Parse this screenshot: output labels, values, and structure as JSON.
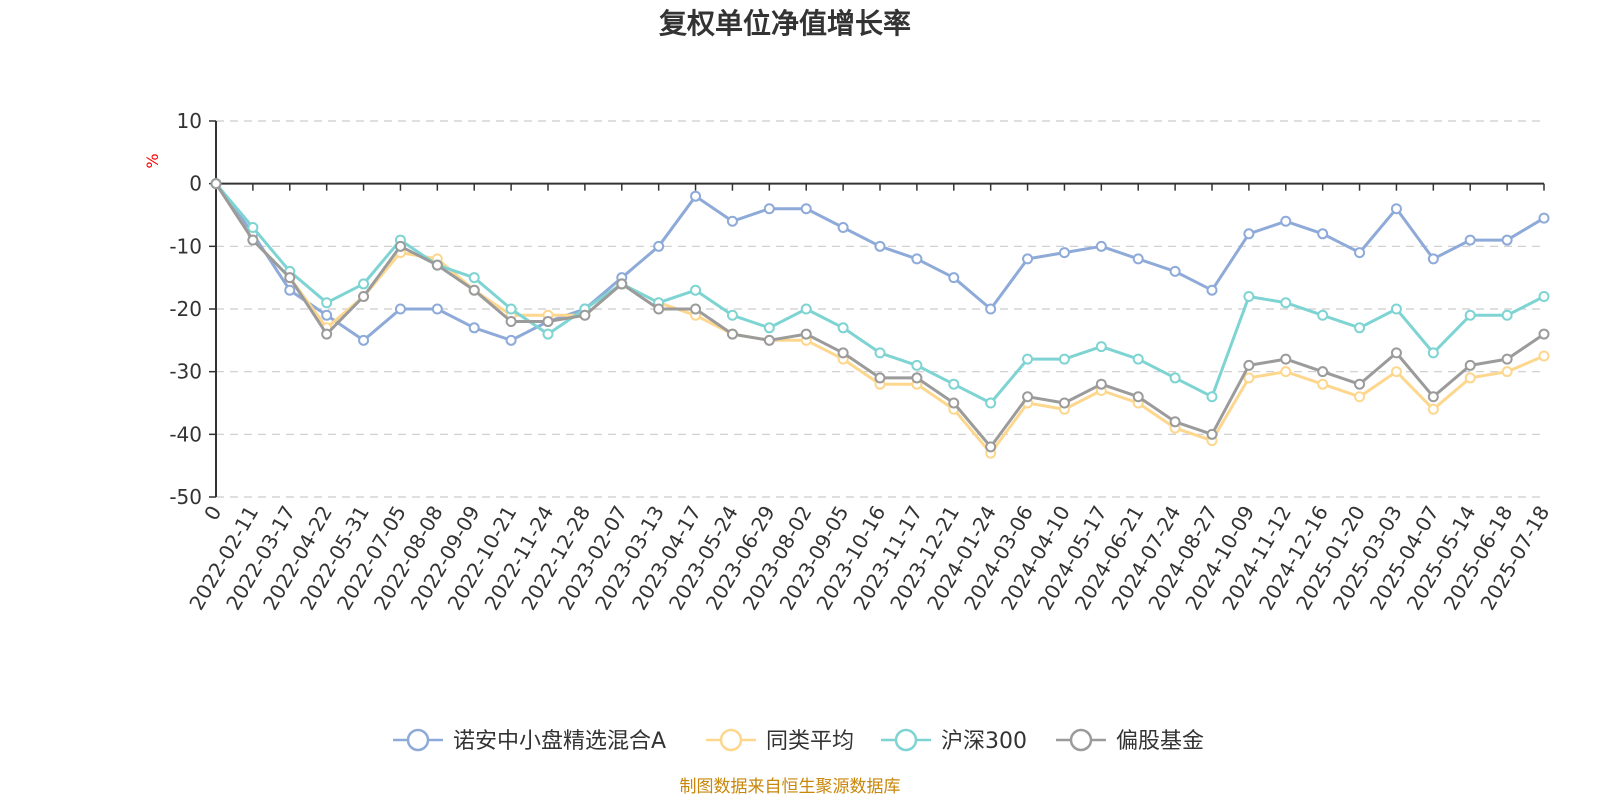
{
  "chart_data": {
    "type": "line",
    "title": "复权单位净值增长率",
    "ylabel": "%",
    "ylim": [
      -50,
      10
    ],
    "yticks": [
      10,
      0,
      -10,
      -20,
      -30,
      -40,
      -50
    ],
    "grid": true,
    "legend_position": "bottom",
    "x": [
      "0",
      "2022-02-11",
      "2022-03-17",
      "2022-04-22",
      "2022-05-31",
      "2022-07-05",
      "2022-08-08",
      "2022-09-09",
      "2022-10-21",
      "2022-11-24",
      "2022-12-28",
      "2023-02-07",
      "2023-03-13",
      "2023-04-17",
      "2023-05-24",
      "2023-06-29",
      "2023-08-02",
      "2023-09-05",
      "2023-10-16",
      "2023-11-17",
      "2023-12-21",
      "2024-01-24",
      "2024-03-06",
      "2024-04-10",
      "2024-05-17",
      "2024-06-21",
      "2024-07-24",
      "2024-08-27",
      "2024-10-09",
      "2024-11-12",
      "2024-12-16",
      "2025-01-20",
      "2025-03-03",
      "2025-04-07",
      "2025-05-14",
      "2025-06-18",
      "2025-07-18"
    ],
    "series": [
      {
        "name": "诺安中小盘精选混合A",
        "color": "#8eaad9",
        "values": [
          0,
          -8,
          -17,
          -21,
          -25,
          -20,
          -20,
          -23,
          -25,
          -22,
          -20,
          -15,
          -10,
          -2,
          -6,
          -4,
          -4,
          -7,
          -10,
          -12,
          -15,
          -20,
          -12,
          -11,
          -10,
          -12,
          -14,
          -17,
          -8,
          -6,
          -8,
          -11,
          -4,
          -12,
          -9,
          -9,
          -5.5
        ]
      },
      {
        "name": "同类平均",
        "color": "#fdd78e",
        "values": [
          0,
          -9,
          -15,
          -23,
          -18,
          -11,
          -12,
          -17,
          -21,
          -21,
          -21,
          -16,
          -19,
          -21,
          -24,
          -25,
          -25,
          -28,
          -32,
          -32,
          -36,
          -43,
          -35,
          -36,
          -33,
          -35,
          -39,
          -41,
          -31,
          -30,
          -32,
          -34,
          -30,
          -36,
          -31,
          -30,
          -27.5
        ]
      },
      {
        "name": "沪深300",
        "color": "#7ed4d3",
        "values": [
          0,
          -7,
          -14,
          -19,
          -16,
          -9,
          -13,
          -15,
          -20,
          -24,
          -20,
          -16,
          -19,
          -17,
          -21,
          -23,
          -20,
          -23,
          -27,
          -29,
          -32,
          -35,
          -28,
          -28,
          -26,
          -28,
          -31,
          -34,
          -18,
          -19,
          -21,
          -23,
          -20,
          -27,
          -21,
          -21,
          -18
        ]
      },
      {
        "name": "偏股基金",
        "color": "#9b9b9b",
        "values": [
          0,
          -9,
          -15,
          -24,
          -18,
          -10,
          -13,
          -17,
          -22,
          -22,
          -21,
          -16,
          -20,
          -20,
          -24,
          -25,
          -24,
          -27,
          -31,
          -31,
          -35,
          -42,
          -34,
          -35,
          -32,
          -34,
          -38,
          -40,
          -29,
          -28,
          -30,
          -32,
          -27,
          -34,
          -29,
          -28,
          -24
        ]
      }
    ]
  },
  "footer": {
    "source": "制图数据来自恒生聚源数据库"
  }
}
